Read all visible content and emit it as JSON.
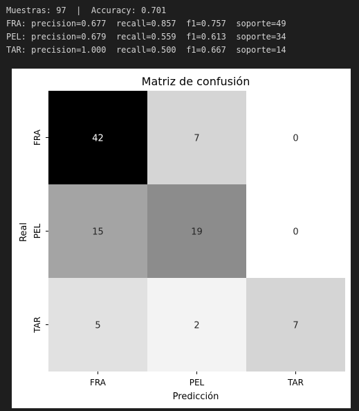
{
  "console": {
    "lines": [
      "Muestras: 97  |  Accuracy: 0.701",
      "FRA: precision=0.677  recall=0.857  f1=0.757  soporte=49",
      "PEL: precision=0.679  recall=0.559  f1=0.613  soporte=34",
      "TAR: precision=1.000  recall=0.500  f1=0.667  soporte=14"
    ]
  },
  "chart_data": {
    "type": "heatmap",
    "title": "Matriz de confusión",
    "xlabel": "Predicción",
    "ylabel": "Real",
    "x_categories": [
      "FRA",
      "PEL",
      "TAR"
    ],
    "y_categories": [
      "FRA",
      "PEL",
      "TAR"
    ],
    "values": [
      [
        42,
        7,
        0
      ],
      [
        15,
        19,
        0
      ],
      [
        5,
        2,
        7
      ]
    ],
    "colormap": "Greys",
    "vmin": 0,
    "vmax": 42,
    "colorbar": false,
    "grid": false
  }
}
